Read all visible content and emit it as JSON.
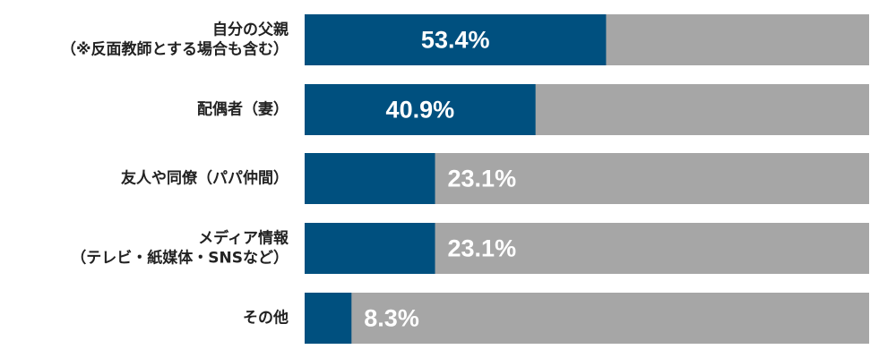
{
  "chart_data": {
    "type": "bar",
    "orientation": "horizontal",
    "stacked_to_total": true,
    "categories": [
      [
        "自分の父親",
        "（※反面教師とする場合も含む）"
      ],
      [
        "配偶者（妻）"
      ],
      [
        "友人や同僚（パパ仲間）"
      ],
      [
        "メディア情報",
        "（テレビ・紙媒体・SNSなど）"
      ],
      [
        "その他"
      ]
    ],
    "values": [
      53.4,
      40.9,
      23.1,
      23.1,
      8.3
    ],
    "value_labels": [
      "53.4%",
      "40.9%",
      "23.1%",
      "23.1%",
      "8.3%"
    ],
    "xlim": [
      0,
      100
    ],
    "grid": false,
    "legend": "none",
    "colors": {
      "value": "#00507f",
      "remainder": "#a6a6a6",
      "value_text": "#ffffff",
      "category_text": "#222222"
    }
  }
}
